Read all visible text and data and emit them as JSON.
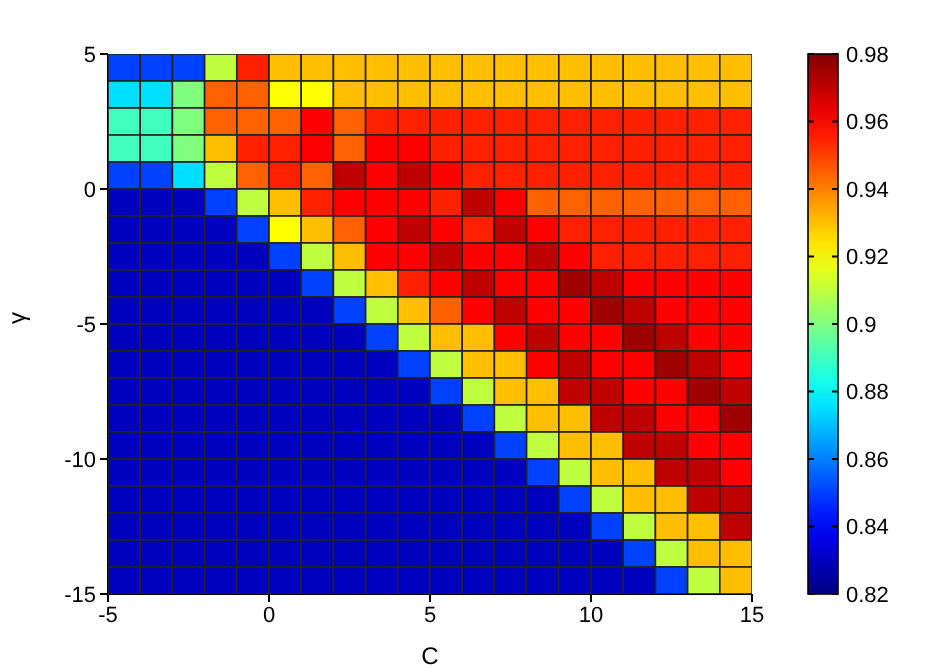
{
  "chart_data": {
    "type": "heatmap",
    "xlabel": "C",
    "ylabel": "γ",
    "x": [
      -4.5,
      -3.5,
      -2.5,
      -1.5,
      -0.5,
      0.5,
      1.5,
      2.5,
      3.5,
      4.5,
      5.5,
      6.5,
      7.5,
      8.5,
      9.5,
      10.5,
      11.5,
      12.5,
      13.5,
      14.5
    ],
    "y": [
      4.5,
      3.5,
      2.5,
      1.5,
      0.5,
      -0.5,
      -1.5,
      -2.5,
      -3.5,
      -4.5,
      -5.5,
      -6.5,
      -7.5,
      -8.5,
      -9.5,
      -10.5,
      -11.5,
      -12.5,
      -13.5,
      -14.5
    ],
    "xlim": [
      -5,
      15
    ],
    "xticks": [
      -5,
      0,
      5,
      10,
      15
    ],
    "ylim": [
      -15,
      5
    ],
    "yticks": [
      -15,
      -10,
      -5,
      0,
      5
    ],
    "clim": [
      0.82,
      0.98
    ],
    "cticks": [
      0.82,
      0.84,
      0.86,
      0.88,
      0.9,
      0.92,
      0.94,
      0.96,
      0.98
    ],
    "cells": [
      [
        0.85,
        0.85,
        0.85,
        0.91,
        0.955,
        0.93,
        0.93,
        0.93,
        0.93,
        0.93,
        0.93,
        0.93,
        0.93,
        0.93,
        0.93,
        0.93,
        0.93,
        0.93,
        0.93,
        0.93
      ],
      [
        0.875,
        0.875,
        0.9,
        0.945,
        0.945,
        0.92,
        0.92,
        0.93,
        0.93,
        0.93,
        0.93,
        0.93,
        0.93,
        0.93,
        0.93,
        0.93,
        0.93,
        0.93,
        0.93,
        0.93
      ],
      [
        0.89,
        0.89,
        0.9,
        0.945,
        0.945,
        0.945,
        0.96,
        0.945,
        0.955,
        0.955,
        0.955,
        0.955,
        0.955,
        0.955,
        0.955,
        0.955,
        0.955,
        0.955,
        0.955,
        0.955
      ],
      [
        0.89,
        0.89,
        0.9,
        0.93,
        0.955,
        0.955,
        0.96,
        0.945,
        0.96,
        0.96,
        0.955,
        0.955,
        0.955,
        0.955,
        0.955,
        0.955,
        0.955,
        0.955,
        0.955,
        0.955
      ],
      [
        0.85,
        0.85,
        0.875,
        0.91,
        0.945,
        0.955,
        0.945,
        0.97,
        0.96,
        0.97,
        0.96,
        0.955,
        0.955,
        0.955,
        0.955,
        0.955,
        0.955,
        0.955,
        0.955,
        0.955
      ],
      [
        0.83,
        0.83,
        0.83,
        0.85,
        0.91,
        0.93,
        0.955,
        0.96,
        0.96,
        0.96,
        0.955,
        0.97,
        0.96,
        0.945,
        0.945,
        0.945,
        0.945,
        0.945,
        0.945,
        0.945
      ],
      [
        0.83,
        0.83,
        0.83,
        0.83,
        0.85,
        0.92,
        0.93,
        0.945,
        0.96,
        0.97,
        0.96,
        0.955,
        0.97,
        0.96,
        0.955,
        0.955,
        0.955,
        0.955,
        0.955,
        0.955
      ],
      [
        0.83,
        0.83,
        0.83,
        0.83,
        0.83,
        0.85,
        0.91,
        0.93,
        0.96,
        0.96,
        0.97,
        0.96,
        0.96,
        0.97,
        0.96,
        0.955,
        0.955,
        0.955,
        0.955,
        0.955
      ],
      [
        0.83,
        0.83,
        0.83,
        0.83,
        0.83,
        0.83,
        0.85,
        0.91,
        0.93,
        0.955,
        0.96,
        0.97,
        0.96,
        0.96,
        0.975,
        0.97,
        0.96,
        0.96,
        0.96,
        0.96
      ],
      [
        0.83,
        0.83,
        0.83,
        0.83,
        0.83,
        0.83,
        0.83,
        0.85,
        0.91,
        0.93,
        0.945,
        0.96,
        0.97,
        0.96,
        0.96,
        0.975,
        0.97,
        0.96,
        0.96,
        0.96
      ],
      [
        0.83,
        0.83,
        0.83,
        0.83,
        0.83,
        0.83,
        0.83,
        0.83,
        0.85,
        0.91,
        0.93,
        0.93,
        0.96,
        0.97,
        0.96,
        0.96,
        0.975,
        0.97,
        0.96,
        0.96
      ],
      [
        0.83,
        0.83,
        0.83,
        0.83,
        0.83,
        0.83,
        0.83,
        0.83,
        0.83,
        0.85,
        0.91,
        0.93,
        0.93,
        0.96,
        0.97,
        0.96,
        0.96,
        0.975,
        0.97,
        0.96
      ],
      [
        0.83,
        0.83,
        0.83,
        0.83,
        0.83,
        0.83,
        0.83,
        0.83,
        0.83,
        0.83,
        0.85,
        0.91,
        0.93,
        0.93,
        0.97,
        0.97,
        0.96,
        0.96,
        0.975,
        0.97
      ],
      [
        0.83,
        0.83,
        0.83,
        0.83,
        0.83,
        0.83,
        0.83,
        0.83,
        0.83,
        0.83,
        0.83,
        0.85,
        0.91,
        0.93,
        0.93,
        0.97,
        0.97,
        0.96,
        0.96,
        0.975
      ],
      [
        0.83,
        0.83,
        0.83,
        0.83,
        0.83,
        0.83,
        0.83,
        0.83,
        0.83,
        0.83,
        0.83,
        0.83,
        0.85,
        0.91,
        0.93,
        0.93,
        0.97,
        0.97,
        0.96,
        0.96
      ],
      [
        0.83,
        0.83,
        0.83,
        0.83,
        0.83,
        0.83,
        0.83,
        0.83,
        0.83,
        0.83,
        0.83,
        0.83,
        0.83,
        0.85,
        0.91,
        0.93,
        0.93,
        0.97,
        0.97,
        0.96
      ],
      [
        0.83,
        0.83,
        0.83,
        0.83,
        0.83,
        0.83,
        0.83,
        0.83,
        0.83,
        0.83,
        0.83,
        0.83,
        0.83,
        0.83,
        0.85,
        0.91,
        0.93,
        0.93,
        0.97,
        0.97
      ],
      [
        0.83,
        0.83,
        0.83,
        0.83,
        0.83,
        0.83,
        0.83,
        0.83,
        0.83,
        0.83,
        0.83,
        0.83,
        0.83,
        0.83,
        0.83,
        0.85,
        0.91,
        0.93,
        0.93,
        0.97
      ],
      [
        0.83,
        0.83,
        0.83,
        0.83,
        0.83,
        0.83,
        0.83,
        0.83,
        0.83,
        0.83,
        0.83,
        0.83,
        0.83,
        0.83,
        0.83,
        0.83,
        0.85,
        0.91,
        0.93,
        0.93
      ],
      [
        0.83,
        0.83,
        0.83,
        0.83,
        0.83,
        0.83,
        0.83,
        0.83,
        0.83,
        0.83,
        0.83,
        0.83,
        0.83,
        0.83,
        0.83,
        0.83,
        0.83,
        0.85,
        0.91,
        0.93
      ]
    ]
  }
}
